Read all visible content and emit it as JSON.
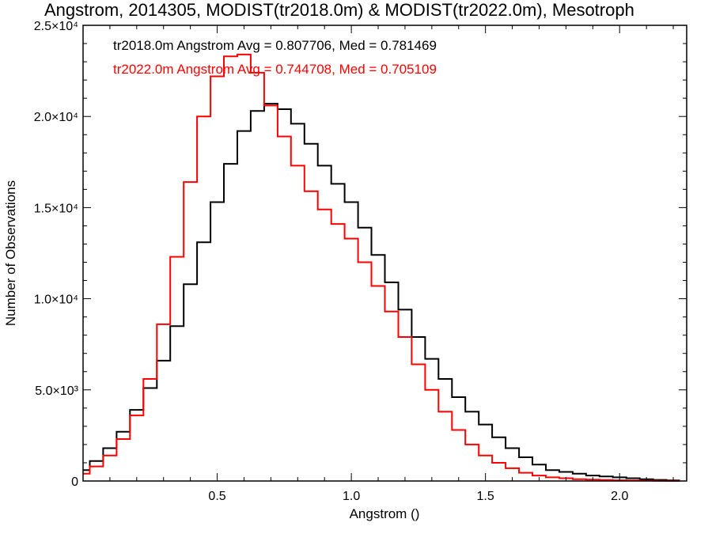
{
  "chart_data": {
    "type": "line",
    "title": "Angstrom, 2014305, MODIST(tr2018.0m) & MODIST(tr2022.0m), Mesotroph",
    "xlabel": "Angstrom ()",
    "ylabel": "Number of Observations",
    "xlim": [
      0.0,
      2.25
    ],
    "ylim": [
      0,
      25000
    ],
    "grid": false,
    "step": true,
    "x_ticks": [
      {
        "value": 0.5,
        "label": "0.5"
      },
      {
        "value": 1.0,
        "label": "1.0"
      },
      {
        "value": 1.5,
        "label": "1.5"
      },
      {
        "value": 2.0,
        "label": "2.0"
      }
    ],
    "y_ticks": [
      {
        "value": 0,
        "label": "0"
      },
      {
        "value": 5000,
        "label": "5.0×10³"
      },
      {
        "value": 10000,
        "label": "1.0×10⁴"
      },
      {
        "value": 15000,
        "label": "1.5×10⁴"
      },
      {
        "value": 20000,
        "label": "2.0×10⁴"
      },
      {
        "value": 25000,
        "label": "2.5×10⁴"
      }
    ],
    "series": [
      {
        "name": "tr2018.0m",
        "color": "#000000",
        "annotation": "tr2018.0m Angstrom Avg = 0.807706, Med = 0.781469",
        "x": [
          0.0,
          0.05,
          0.1,
          0.15,
          0.2,
          0.25,
          0.3,
          0.35,
          0.4,
          0.45,
          0.5,
          0.55,
          0.6,
          0.65,
          0.7,
          0.75,
          0.8,
          0.85,
          0.9,
          0.95,
          1.0,
          1.05,
          1.1,
          1.15,
          1.2,
          1.25,
          1.3,
          1.35,
          1.4,
          1.45,
          1.5,
          1.55,
          1.6,
          1.65,
          1.7,
          1.75,
          1.8,
          1.85,
          1.9,
          1.95,
          2.0,
          2.05,
          2.1,
          2.15,
          2.2
        ],
        "y": [
          600,
          1100,
          1800,
          2700,
          3900,
          5100,
          6600,
          8500,
          10800,
          13100,
          15300,
          17400,
          19200,
          20300,
          20700,
          20400,
          19600,
          18500,
          17300,
          16300,
          15300,
          13900,
          12400,
          10900,
          9400,
          7900,
          6700,
          5600,
          4600,
          3800,
          3100,
          2400,
          1800,
          1300,
          900,
          600,
          500,
          400,
          300,
          250,
          200,
          150,
          100,
          60,
          30
        ]
      },
      {
        "name": "tr2022.0m",
        "color": "#ff0000",
        "annotation": "tr2022.0m Angstrom Avg = 0.744708, Med = 0.705109",
        "x": [
          0.0,
          0.05,
          0.1,
          0.15,
          0.2,
          0.25,
          0.3,
          0.35,
          0.4,
          0.45,
          0.5,
          0.55,
          0.6,
          0.65,
          0.7,
          0.75,
          0.8,
          0.85,
          0.9,
          0.95,
          1.0,
          1.05,
          1.1,
          1.15,
          1.2,
          1.25,
          1.3,
          1.35,
          1.4,
          1.45,
          1.5,
          1.55,
          1.6,
          1.65,
          1.7,
          1.75,
          1.8,
          1.85,
          1.9,
          1.95,
          2.0,
          2.05,
          2.1,
          2.15,
          2.2
        ],
        "y": [
          400,
          800,
          1400,
          2300,
          3600,
          5600,
          8600,
          12300,
          16400,
          20000,
          22200,
          23300,
          23400,
          22400,
          20600,
          18900,
          17300,
          15900,
          14900,
          14100,
          13300,
          12000,
          10700,
          9300,
          7900,
          6400,
          5000,
          3800,
          2800,
          2000,
          1400,
          1000,
          700,
          450,
          300,
          200,
          150,
          100,
          80,
          60,
          40,
          30,
          20,
          10,
          5
        ]
      }
    ]
  }
}
